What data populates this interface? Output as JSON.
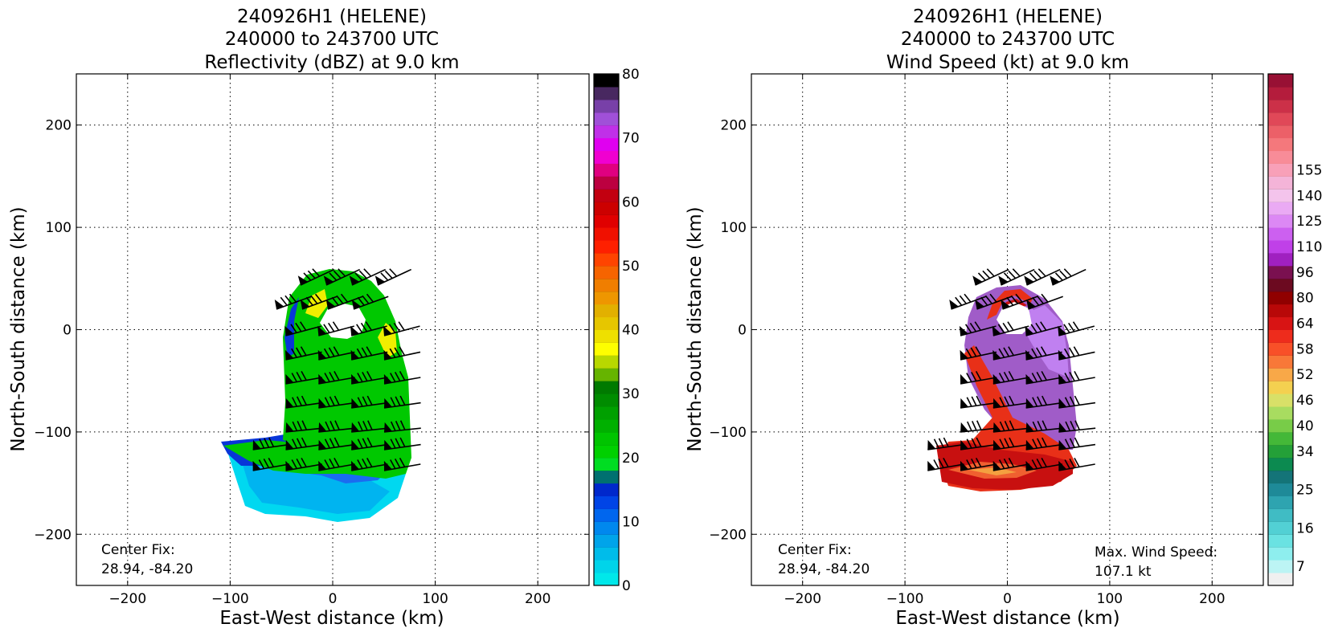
{
  "chart_data": [
    {
      "type": "heatmap",
      "title_lines": [
        "240926H1 (HELENE)",
        "240000 to 243700 UTC",
        "Reflectivity (dBZ) at 9.0 km"
      ],
      "xlabel": "East-West distance (km)",
      "ylabel": "North-South distance (km)",
      "xlim": [
        -250,
        250
      ],
      "ylim": [
        -250,
        250
      ],
      "xticks": [
        -200,
        -100,
        0,
        100,
        200
      ],
      "yticks": [
        -200,
        -100,
        0,
        100,
        200
      ],
      "xtick_labels": [
        "−200",
        "−100",
        "0",
        "100",
        "200"
      ],
      "ytick_labels": [
        "−200",
        "−100",
        "0",
        "100",
        "200"
      ],
      "grid": true,
      "annotation": [
        "Center Fix:",
        "28.94, -84.20"
      ],
      "colorbar": {
        "min": 0,
        "max": 80,
        "step": 2.5,
        "ticks": [
          0,
          10,
          20,
          30,
          40,
          50,
          60,
          70,
          80
        ],
        "tick_labels": [
          "0",
          "10",
          "20",
          "30",
          "40",
          "50",
          "60",
          "70",
          "80"
        ],
        "colors": [
          "#00e8ea",
          "#00d4ea",
          "#00bcea",
          "#00a4ea",
          "#0088ee",
          "#0066ee",
          "#0044e6",
          "#0028cc",
          "#007070",
          "#00dd22",
          "#00d000",
          "#00c400",
          "#00b000",
          "#00a000",
          "#008c00",
          "#007a00",
          "#66b400",
          "#b8d800",
          "#fefe00",
          "#eee000",
          "#e6c600",
          "#e2b000",
          "#ee9600",
          "#f07e00",
          "#f66400",
          "#ff4400",
          "#fe2000",
          "#f01000",
          "#e00000",
          "#cc0000",
          "#c20010",
          "#bc0040",
          "#e00080",
          "#f000d0",
          "#e000f0",
          "#c030e8",
          "#a050d8",
          "#7840a8",
          "#482860",
          "#000000"
        ]
      },
      "radar_echo": {
        "colors": [
          "#00d8f0",
          "#00b4f0",
          "#1a6cf0",
          "#0836d8",
          "#00c800",
          "#33d81a",
          "#66cc33",
          "#ccd833",
          "#f0ee00"
        ]
      }
    },
    {
      "type": "heatmap",
      "title_lines": [
        "240926H1 (HELENE)",
        "240000 to 243700 UTC",
        "Wind Speed (kt) at 9.0 km"
      ],
      "xlabel": "East-West distance (km)",
      "ylabel": "North-South distance (km)",
      "xlim": [
        -250,
        250
      ],
      "ylim": [
        -250,
        250
      ],
      "xticks": [
        -200,
        -100,
        0,
        100,
        200
      ],
      "yticks": [
        -200,
        -100,
        0,
        100,
        200
      ],
      "xtick_labels": [
        "−200",
        "−100",
        "0",
        "100",
        "200"
      ],
      "ytick_labels": [
        "−200",
        "−100",
        "0",
        "100",
        "200"
      ],
      "grid": true,
      "annotation": [
        "Center Fix:",
        "28.94, -84.20"
      ],
      "annotation2": [
        "Max. Wind Speed:",
        "107.1 kt"
      ],
      "colorbar": {
        "tick_labels": [
          "7",
          "16",
          "25",
          "34",
          "40",
          "46",
          "52",
          "58",
          "64",
          "80",
          "96",
          "110",
          "125",
          "140",
          "155"
        ],
        "tick_levels": [
          1,
          4,
          7,
          10,
          12,
          14,
          16,
          18,
          20,
          22,
          24,
          26,
          28,
          30,
          32
        ],
        "colors": [
          "#f0f0f0",
          "#bcf4f4",
          "#8eeeee",
          "#6ae2e2",
          "#52d0d4",
          "#40bcc4",
          "#2ea4b0",
          "#1e8a98",
          "#147478",
          "#0c8a50",
          "#24a038",
          "#44b838",
          "#78cc48",
          "#a8dc60",
          "#d8e068",
          "#f4d050",
          "#f8a848",
          "#f87838",
          "#f85028",
          "#ee2c1c",
          "#d81414",
          "#b80808",
          "#900000",
          "#6c0a20",
          "#7a1050",
          "#a020c0",
          "#c040e8",
          "#cc60f0",
          "#dc88f4",
          "#eaaaf4",
          "#f4c4ec",
          "#f4b4d8",
          "#f8a0b8",
          "#f88c98",
          "#f4787c",
          "#ec6068",
          "#e04858",
          "#cc3048",
          "#b41c3c",
          "#981034"
        ]
      },
      "wind_field": {
        "colors": [
          "#8a0c14",
          "#c81010",
          "#e83018",
          "#f06030",
          "#f4a040",
          "#f8d070",
          "#a05cc8",
          "#c080f0",
          "#d8a0f4",
          "#e6b8f0",
          "#f2c8f0"
        ]
      }
    }
  ]
}
